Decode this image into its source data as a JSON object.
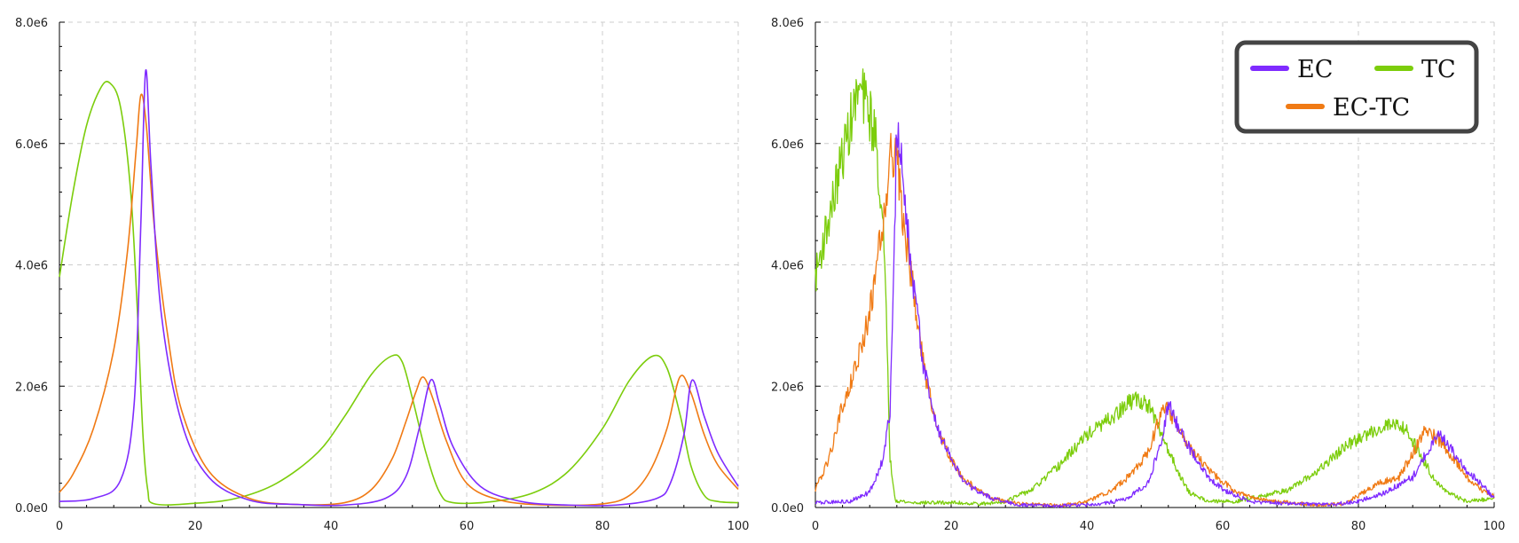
{
  "colors": {
    "EC": "#7f2bff",
    "TC": "#7ccd0c",
    "EC-TC": "#f07a14",
    "grid": "#cccccc",
    "axis": "#000000"
  },
  "legend": {
    "position": "top-right",
    "entries": [
      "EC",
      "TC",
      "EC-TC"
    ]
  },
  "chart_data": [
    {
      "type": "line",
      "title": "",
      "xlabel": "",
      "ylabel": "",
      "xlim": [
        0,
        100
      ],
      "ylim": [
        0,
        8000000
      ],
      "x_ticks": [
        "0",
        "20",
        "40",
        "60",
        "80",
        "100"
      ],
      "y_ticks": [
        "0.0e0",
        "2.0e6",
        "4.0e6",
        "6.0e6",
        "8.0e6"
      ],
      "grid": true,
      "noisy": false,
      "series": [
        {
          "name": "EC",
          "points": [
            [
              0,
              100000
            ],
            [
              5,
              150000
            ],
            [
              9,
              450000
            ],
            [
              11,
              1700000
            ],
            [
              12,
              4700000
            ],
            [
              12.7,
              7200000
            ],
            [
              13.5,
              5600000
            ],
            [
              15,
              3200000
            ],
            [
              18,
              1400000
            ],
            [
              22,
              500000
            ],
            [
              28,
              120000
            ],
            [
              35,
              50000
            ],
            [
              42,
              40000
            ],
            [
              48,
              150000
            ],
            [
              51,
              500000
            ],
            [
              53,
              1300000
            ],
            [
              54.7,
              2100000
            ],
            [
              56,
              1700000
            ],
            [
              58,
              1000000
            ],
            [
              62,
              350000
            ],
            [
              68,
              100000
            ],
            [
              75,
              40000
            ],
            [
              82,
              40000
            ],
            [
              88,
              150000
            ],
            [
              90,
              400000
            ],
            [
              92,
              1200000
            ],
            [
              93.2,
              2100000
            ],
            [
              95,
              1500000
            ],
            [
              97,
              900000
            ],
            [
              100,
              350000
            ]
          ]
        },
        {
          "name": "TC",
          "points": [
            [
              0,
              3800000
            ],
            [
              2,
              5200000
            ],
            [
              4,
              6300000
            ],
            [
              6,
              6900000
            ],
            [
              7.4,
              7000000
            ],
            [
              9,
              6600000
            ],
            [
              10.5,
              5200000
            ],
            [
              11.5,
              3200000
            ],
            [
              12.3,
              1200000
            ],
            [
              13,
              300000
            ],
            [
              14,
              60000
            ],
            [
              20,
              70000
            ],
            [
              26,
              150000
            ],
            [
              32,
              400000
            ],
            [
              38,
              900000
            ],
            [
              42,
              1500000
            ],
            [
              46,
              2200000
            ],
            [
              49,
              2500000
            ],
            [
              50.5,
              2400000
            ],
            [
              52,
              1800000
            ],
            [
              54,
              900000
            ],
            [
              56,
              250000
            ],
            [
              58,
              80000
            ],
            [
              64,
              100000
            ],
            [
              70,
              250000
            ],
            [
              75,
              600000
            ],
            [
              80,
              1300000
            ],
            [
              84,
              2100000
            ],
            [
              87.5,
              2500000
            ],
            [
              89.5,
              2300000
            ],
            [
              91.5,
              1500000
            ],
            [
              93,
              700000
            ],
            [
              95,
              200000
            ],
            [
              97,
              100000
            ],
            [
              100,
              80000
            ]
          ]
        },
        {
          "name": "EC-TC",
          "points": [
            [
              0,
              250000
            ],
            [
              2,
              550000
            ],
            [
              5,
              1300000
            ],
            [
              8,
              2600000
            ],
            [
              10,
              4200000
            ],
            [
              11.3,
              5900000
            ],
            [
              12,
              6800000
            ],
            [
              12.8,
              6300000
            ],
            [
              14,
              4600000
            ],
            [
              16,
              2800000
            ],
            [
              18,
              1600000
            ],
            [
              22,
              600000
            ],
            [
              28,
              150000
            ],
            [
              35,
              50000
            ],
            [
              42,
              80000
            ],
            [
              46,
              300000
            ],
            [
              49,
              800000
            ],
            [
              51,
              1400000
            ],
            [
              52.5,
              1900000
            ],
            [
              53.6,
              2150000
            ],
            [
              55,
              1800000
            ],
            [
              57,
              1100000
            ],
            [
              60,
              400000
            ],
            [
              65,
              120000
            ],
            [
              72,
              40000
            ],
            [
              80,
              60000
            ],
            [
              84,
              200000
            ],
            [
              87,
              600000
            ],
            [
              89.5,
              1300000
            ],
            [
              91.4,
              2150000
            ],
            [
              93,
              1900000
            ],
            [
              95,
              1200000
            ],
            [
              97,
              700000
            ],
            [
              100,
              300000
            ]
          ]
        }
      ]
    },
    {
      "type": "line",
      "title": "",
      "xlabel": "",
      "ylabel": "",
      "xlim": [
        0,
        100
      ],
      "ylim": [
        0,
        8000000
      ],
      "x_ticks": [
        "0",
        "20",
        "40",
        "60",
        "80",
        "100"
      ],
      "y_ticks": [
        "0.0e0",
        "2.0e6",
        "4.0e6",
        "6.0e6",
        "8.0e6"
      ],
      "grid": true,
      "noisy": true,
      "series": [
        {
          "name": "EC",
          "points": [
            [
              0,
              80000
            ],
            [
              5,
              100000
            ],
            [
              8,
              250000
            ],
            [
              10,
              800000
            ],
            [
              11,
              1600000
            ],
            [
              11.5,
              3500000
            ],
            [
              12,
              6400000
            ],
            [
              13,
              5200000
            ],
            [
              14.5,
              3600000
            ],
            [
              16,
              2300000
            ],
            [
              18,
              1300000
            ],
            [
              20,
              800000
            ],
            [
              22,
              400000
            ],
            [
              26,
              150000
            ],
            [
              30,
              40000
            ],
            [
              36,
              30000
            ],
            [
              42,
              50000
            ],
            [
              46,
              150000
            ],
            [
              49,
              400000
            ],
            [
              51,
              1100000
            ],
            [
              52,
              1700000
            ],
            [
              54,
              1200000
            ],
            [
              56,
              800000
            ],
            [
              58,
              500000
            ],
            [
              60,
              300000
            ],
            [
              64,
              100000
            ],
            [
              70,
              60000
            ],
            [
              76,
              50000
            ],
            [
              80,
              100000
            ],
            [
              84,
              250000
            ],
            [
              88,
              500000
            ],
            [
              90,
              900000
            ],
            [
              92,
              1200000
            ],
            [
              94,
              900000
            ],
            [
              96,
              600000
            ],
            [
              98,
              400000
            ],
            [
              100,
              150000
            ]
          ]
        },
        {
          "name": "TC",
          "points": [
            [
              0,
              3800000
            ],
            [
              1,
              4300000
            ],
            [
              2.5,
              5000000
            ],
            [
              4,
              5800000
            ],
            [
              5.5,
              6500000
            ],
            [
              6.5,
              6900000
            ],
            [
              8,
              6500000
            ],
            [
              9,
              6000000
            ],
            [
              10,
              4500000
            ],
            [
              10.6,
              2600000
            ],
            [
              11,
              800000
            ],
            [
              11.8,
              120000
            ],
            [
              14,
              80000
            ],
            [
              20,
              80000
            ],
            [
              25,
              60000
            ],
            [
              28,
              100000
            ],
            [
              32,
              300000
            ],
            [
              36,
              700000
            ],
            [
              40,
              1200000
            ],
            [
              44,
              1500000
            ],
            [
              47,
              1800000
            ],
            [
              49,
              1700000
            ],
            [
              51,
              1200000
            ],
            [
              53,
              700000
            ],
            [
              55,
              250000
            ],
            [
              58,
              100000
            ],
            [
              62,
              100000
            ],
            [
              66,
              200000
            ],
            [
              70,
              300000
            ],
            [
              74,
              600000
            ],
            [
              78,
              1000000
            ],
            [
              82,
              1250000
            ],
            [
              85,
              1400000
            ],
            [
              87,
              1300000
            ],
            [
              89,
              900000
            ],
            [
              91,
              500000
            ],
            [
              93,
              250000
            ],
            [
              96,
              100000
            ],
            [
              100,
              150000
            ]
          ]
        },
        {
          "name": "EC-TC",
          "points": [
            [
              0,
              300000
            ],
            [
              2,
              800000
            ],
            [
              4,
              1700000
            ],
            [
              6,
              2300000
            ],
            [
              8,
              3200000
            ],
            [
              10,
              4800000
            ],
            [
              11,
              5800000
            ],
            [
              11.8,
              5900000
            ],
            [
              13,
              4700000
            ],
            [
              14.5,
              3500000
            ],
            [
              16,
              2300000
            ],
            [
              18,
              1300000
            ],
            [
              20,
              800000
            ],
            [
              22,
              450000
            ],
            [
              26,
              150000
            ],
            [
              30,
              60000
            ],
            [
              36,
              30000
            ],
            [
              40,
              100000
            ],
            [
              44,
              300000
            ],
            [
              47,
              600000
            ],
            [
              49,
              900000
            ],
            [
              50.5,
              1400000
            ],
            [
              51.5,
              1700000
            ],
            [
              53,
              1400000
            ],
            [
              55,
              1000000
            ],
            [
              58,
              600000
            ],
            [
              62,
              250000
            ],
            [
              66,
              120000
            ],
            [
              70,
              80000
            ],
            [
              74,
              40000
            ],
            [
              78,
              60000
            ],
            [
              80,
              200000
            ],
            [
              83,
              400000
            ],
            [
              86,
              500000
            ],
            [
              88,
              900000
            ],
            [
              90,
              1300000
            ],
            [
              92,
              1100000
            ],
            [
              94,
              800000
            ],
            [
              96,
              500000
            ],
            [
              98,
              300000
            ],
            [
              100,
              180000
            ]
          ]
        }
      ]
    }
  ]
}
